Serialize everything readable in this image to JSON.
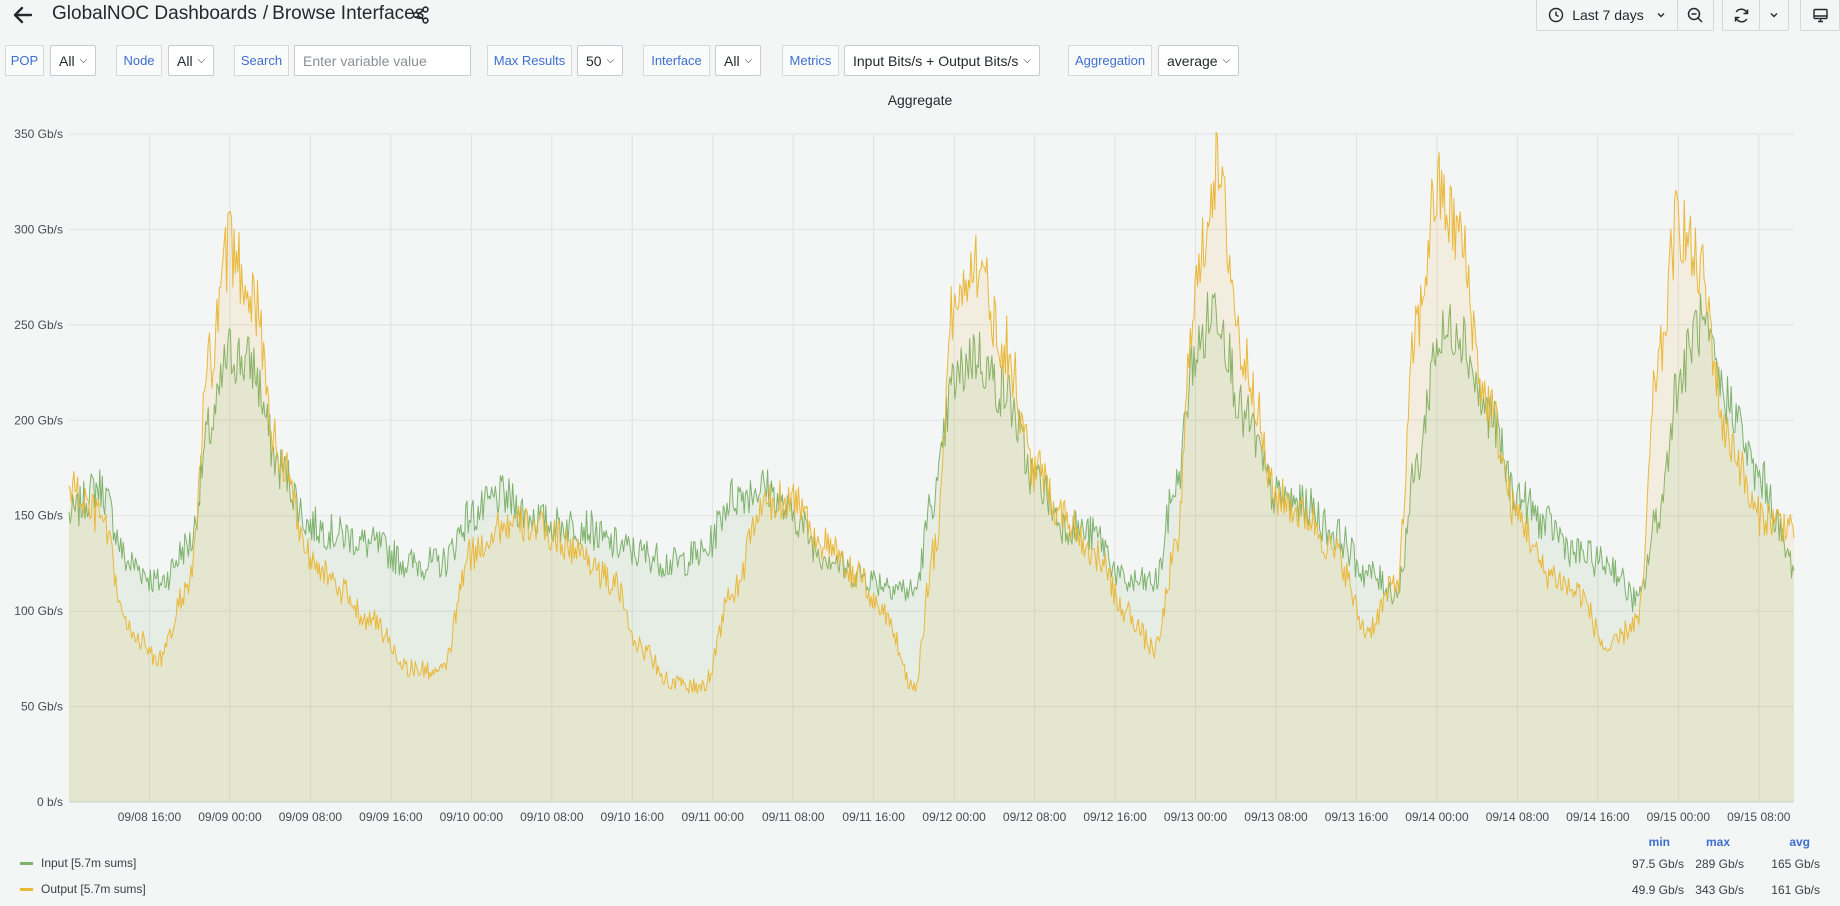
{
  "header": {
    "app_title": "GlobalNOC Dashboards",
    "separator": "/",
    "page_title": "Browse Interfaces",
    "time_range": "Last 7 days"
  },
  "variables": [
    {
      "label": "POP",
      "value": "All"
    },
    {
      "label": "Node",
      "value": "All"
    },
    {
      "label": "Search",
      "placeholder": "Enter variable value"
    },
    {
      "label": "Max Results",
      "value": "50"
    },
    {
      "label": "Interface",
      "value": "All"
    },
    {
      "label": "Metrics",
      "value": "Input Bits/s + Output Bits/s"
    },
    {
      "label": "Aggregation",
      "value": "average"
    }
  ],
  "panel": {
    "title": "Aggregate"
  },
  "chart_data": {
    "type": "area",
    "title": "Aggregate",
    "ylim": [
      0,
      350
    ],
    "y_unit": "Gb/s",
    "y_ticks": [
      "0 b/s",
      "50 Gb/s",
      "100 Gb/s",
      "150 Gb/s",
      "200 Gb/s",
      "250 Gb/s",
      "300 Gb/s",
      "350 Gb/s"
    ],
    "x_range_hours": [
      "09/08 08:00",
      "09/15 11:30"
    ],
    "x_ticks": [
      "09/08 16:00",
      "09/09 00:00",
      "09/09 08:00",
      "09/09 16:00",
      "09/10 00:00",
      "09/10 08:00",
      "09/10 16:00",
      "09/11 00:00",
      "09/11 08:00",
      "09/11 16:00",
      "09/12 00:00",
      "09/12 08:00",
      "09/12 16:00",
      "09/13 00:00",
      "09/13 08:00",
      "09/13 16:00",
      "09/14 00:00",
      "09/14 08:00",
      "09/14 16:00",
      "09/15 00:00",
      "09/15 08:00"
    ],
    "grid": true,
    "legend": "bottom-left",
    "series": [
      {
        "name": "Input [5.7m sums]",
        "color": "#7eb26d",
        "stats": {
          "min": "97.5 Gb/s",
          "max": "289 Gb/s",
          "avg": "165 Gb/s"
        },
        "x": [
          "09/08 08:00",
          "09/08 11:00",
          "09/08 14:00",
          "09/08 17:00",
          "09/08 20:00",
          "09/08 22:00",
          "09/09 00:00",
          "09/09 02:00",
          "09/09 05:00",
          "09/09 08:00",
          "09/09 11:00",
          "09/09 14:00",
          "09/09 18:00",
          "09/09 21:00",
          "09/10 00:00",
          "09/10 03:00",
          "09/10 06:00",
          "09/10 08:00",
          "09/10 11:00",
          "09/10 14:00",
          "09/10 17:00",
          "09/10 20:00",
          "09/10 23:00",
          "09/11 02:00",
          "09/11 05:00",
          "09/11 08:00",
          "09/11 11:00",
          "09/11 14:00",
          "09/11 17:00",
          "09/11 20:00",
          "09/11 22:00",
          "09/12 00:00",
          "09/12 02:00",
          "09/12 05:00",
          "09/12 08:00",
          "09/12 11:00",
          "09/12 14:00",
          "09/12 17:00",
          "09/12 20:00",
          "09/12 22:00",
          "09/13 00:00",
          "09/13 02:00",
          "09/13 05:00",
          "09/13 08:00",
          "09/13 11:00",
          "09/13 14:00",
          "09/13 17:00",
          "09/13 20:00",
          "09/13 22:00",
          "09/14 00:00",
          "09/14 02:00",
          "09/14 05:00",
          "09/14 08:00",
          "09/14 11:00",
          "09/14 14:00",
          "09/14 17:00",
          "09/14 20:00",
          "09/14 22:00",
          "09/15 00:00",
          "09/15 02:00",
          "09/15 05:00",
          "09/15 08:00",
          "09/15 11:30"
        ],
        "values": [
          150,
          165,
          125,
          115,
          135,
          195,
          235,
          230,
          175,
          145,
          140,
          135,
          125,
          125,
          150,
          160,
          150,
          145,
          145,
          135,
          130,
          125,
          130,
          160,
          165,
          150,
          130,
          120,
          115,
          110,
          160,
          220,
          235,
          215,
          170,
          145,
          140,
          115,
          115,
          165,
          235,
          260,
          200,
          160,
          155,
          140,
          120,
          110,
          175,
          240,
          250,
          205,
          160,
          145,
          130,
          125,
          105,
          150,
          220,
          250,
          210,
          170,
          125
        ]
      },
      {
        "name": "Output [5.7m sums]",
        "color": "#eab839",
        "stats": {
          "min": "49.9 Gb/s",
          "max": "343 Gb/s",
          "avg": "161 Gb/s"
        },
        "x": [
          "09/08 08:00",
          "09/08 11:00",
          "09/08 14:00",
          "09/08 17:00",
          "09/08 20:00",
          "09/08 22:00",
          "09/09 00:00",
          "09/09 02:00",
          "09/09 05:00",
          "09/09 08:00",
          "09/09 11:00",
          "09/09 14:00",
          "09/09 18:00",
          "09/09 21:00",
          "09/10 00:00",
          "09/10 03:00",
          "09/10 06:00",
          "09/10 08:00",
          "09/10 11:00",
          "09/10 14:00",
          "09/10 17:00",
          "09/10 20:00",
          "09/10 23:00",
          "09/11 02:00",
          "09/11 05:00",
          "09/11 08:00",
          "09/11 11:00",
          "09/11 14:00",
          "09/11 17:00",
          "09/11 20:00",
          "09/11 22:00",
          "09/12 00:00",
          "09/12 02:00",
          "09/12 05:00",
          "09/12 08:00",
          "09/12 11:00",
          "09/12 14:00",
          "09/12 17:00",
          "09/12 20:00",
          "09/12 22:00",
          "09/13 00:00",
          "09/13 02:00",
          "09/13 05:00",
          "09/13 08:00",
          "09/13 11:00",
          "09/13 14:00",
          "09/13 17:00",
          "09/13 20:00",
          "09/13 22:00",
          "09/14 00:00",
          "09/14 02:00",
          "09/14 05:00",
          "09/14 08:00",
          "09/14 11:00",
          "09/14 14:00",
          "09/14 17:00",
          "09/14 20:00",
          "09/14 22:00",
          "09/15 00:00",
          "09/15 02:00",
          "09/15 05:00",
          "09/15 08:00",
          "09/15 11:30"
        ],
        "values": [
          165,
          150,
          90,
          75,
          115,
          230,
          290,
          270,
          180,
          130,
          110,
          95,
          70,
          68,
          130,
          145,
          145,
          140,
          130,
          115,
          80,
          62,
          60,
          110,
          155,
          160,
          135,
          120,
          100,
          60,
          130,
          260,
          285,
          240,
          175,
          150,
          130,
          100,
          80,
          130,
          270,
          330,
          230,
          160,
          150,
          130,
          90,
          115,
          250,
          320,
          300,
          210,
          150,
          120,
          110,
          80,
          95,
          230,
          305,
          280,
          190,
          150,
          145
        ]
      }
    ]
  }
}
